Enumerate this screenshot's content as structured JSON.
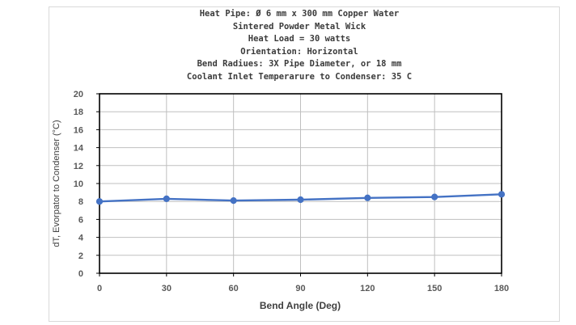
{
  "chart_data": {
    "type": "line",
    "title_lines": [
      "Heat Pipe: Ø 6 mm x 300 mm Copper Water",
      "Sintered Powder Metal Wick",
      "Heat Load = 30 watts",
      "Orientation: Horizontal",
      "Bend Radiues: 3X Pipe Diameter, or 18 mm",
      "Coolant Inlet Temperarure to Condenser: 35 C"
    ],
    "xlabel": "Bend Angle (Deg)",
    "ylabel": "dT, Evorpator to Condenser (°C)",
    "x": [
      0,
      30,
      60,
      90,
      120,
      150,
      180
    ],
    "series": [
      {
        "values": [
          8.0,
          8.3,
          8.1,
          8.2,
          8.4,
          8.5,
          8.8
        ]
      }
    ],
    "xticks": [
      "0",
      "30",
      "60",
      "90",
      "120",
      "150",
      "180"
    ],
    "yticks": [
      "0",
      "2",
      "4",
      "6",
      "8",
      "10",
      "12",
      "14",
      "16",
      "18",
      "20"
    ],
    "xlim": [
      0,
      180
    ],
    "ylim": [
      0,
      20
    ],
    "grid": true,
    "colors": {
      "line": "#4472c4",
      "marker": "#4472c4",
      "grid": "#bfbfbf",
      "axis": "#000000"
    }
  }
}
